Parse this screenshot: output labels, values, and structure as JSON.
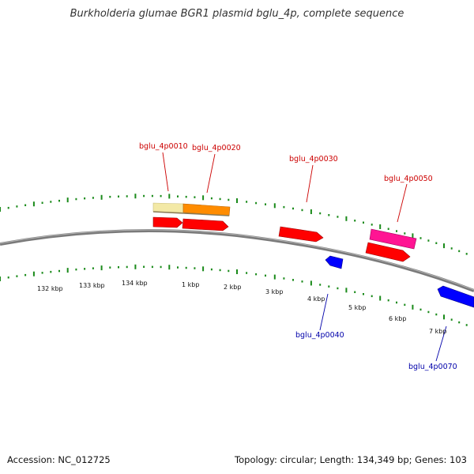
{
  "title": "Burkholderia glumae BGR1 plasmid bglu_4p, complete sequence",
  "footer": {
    "accession_label": "Accession:",
    "accession": "NC_012725",
    "topology_label": "Topology:",
    "topology": "circular;",
    "length_label": "Length:",
    "length": "134,349 bp;",
    "genes_label": "Genes:",
    "genes": "103"
  },
  "colors": {
    "backbone": "#808080",
    "tick": "#1a8a1a",
    "forward_label": "#cc0000",
    "reverse_label": "#0000aa",
    "cds_forward": "#ff0000",
    "cds_reverse": "#0000ff",
    "orange": "#ff8c00",
    "pale": "#f0e6a0",
    "magenta": "#ff1493"
  },
  "ticks": {
    "kbp_labels": [
      "132 kbp",
      "133 kbp",
      "134 kbp",
      "1 kbp",
      "2 kbp",
      "3 kbp",
      "4 kbp",
      "5 kbp",
      "6 kbp",
      "7 kbp"
    ]
  },
  "genes": [
    {
      "name": "bglu_4p0010",
      "strand": "+"
    },
    {
      "name": "bglu_4p0020",
      "strand": "+"
    },
    {
      "name": "bglu_4p0030",
      "strand": "+"
    },
    {
      "name": "bglu_4p0050",
      "strand": "+"
    },
    {
      "name": "bglu_4p0040",
      "strand": "-"
    },
    {
      "name": "bglu_4p0070",
      "strand": "-"
    }
  ]
}
